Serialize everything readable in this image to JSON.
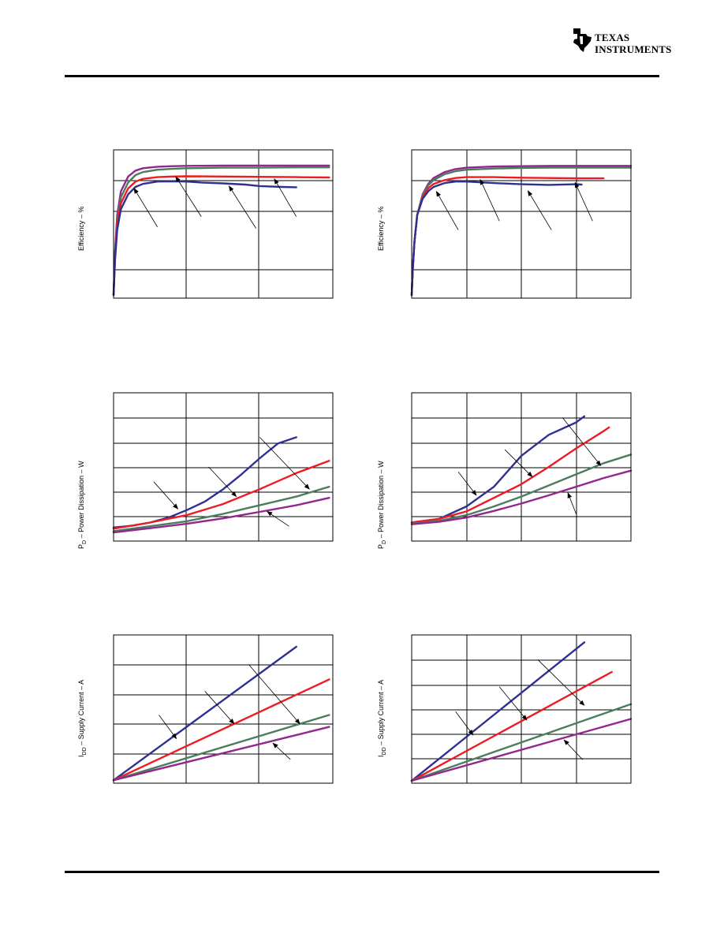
{
  "brand": {
    "logo_text": "TEXAS\nINSTRUMENTS",
    "logo_color": "#000000"
  },
  "colors": {
    "blue": "#2e3192",
    "red": "#ed1c24",
    "green": "#4a7d5e",
    "purple": "#92278f",
    "frame": "#000000",
    "grid": "#000000"
  },
  "chart_data": [
    {
      "type": "line",
      "ylabel": "Efficiency – %",
      "xlim": [
        0,
        3
      ],
      "ylim": [
        0,
        5
      ],
      "grid": true,
      "series": [
        {
          "color": "#92278f",
          "x": [
            0,
            0.02,
            0.05,
            0.1,
            0.2,
            0.3,
            0.4,
            0.6,
            0.8,
            1,
            1.5,
            2,
            2.5,
            2.95
          ],
          "y": [
            0.1,
            1.6,
            2.8,
            3.6,
            4.1,
            4.3,
            4.38,
            4.43,
            4.45,
            4.46,
            4.47,
            4.47,
            4.47,
            4.47
          ]
        },
        {
          "color": "#4a7d5e",
          "x": [
            0,
            0.02,
            0.05,
            0.1,
            0.2,
            0.3,
            0.4,
            0.6,
            0.8,
            1,
            1.5,
            2,
            2.5,
            2.95
          ],
          "y": [
            0.1,
            1.5,
            2.6,
            3.4,
            3.9,
            4.15,
            4.25,
            4.33,
            4.36,
            4.38,
            4.4,
            4.4,
            4.41,
            4.41
          ]
        },
        {
          "color": "#ed1c24",
          "x": [
            0,
            0.02,
            0.05,
            0.1,
            0.2,
            0.3,
            0.4,
            0.6,
            0.8,
            1,
            1.5,
            2,
            2.5,
            2.95
          ],
          "y": [
            0.1,
            1.4,
            2.5,
            3.2,
            3.7,
            3.93,
            4.02,
            4.08,
            4.1,
            4.11,
            4.1,
            4.09,
            4.08,
            4.07
          ]
        },
        {
          "color": "#2e3192",
          "x": [
            0,
            0.02,
            0.05,
            0.1,
            0.2,
            0.3,
            0.4,
            0.6,
            0.8,
            1,
            1.2,
            1.5,
            1.8,
            2,
            2.3,
            2.5
          ],
          "y": [
            0.1,
            1.3,
            2.3,
            3.0,
            3.5,
            3.75,
            3.85,
            3.93,
            3.94,
            3.93,
            3.9,
            3.87,
            3.83,
            3.78,
            3.75,
            3.74
          ]
        }
      ],
      "arrows": [
        {
          "from": [
            0.6,
            2.4
          ],
          "to": [
            0.28,
            3.7
          ]
        },
        {
          "from": [
            1.2,
            2.75
          ],
          "to": [
            0.85,
            4.1
          ]
        },
        {
          "from": [
            1.95,
            2.35
          ],
          "to": [
            1.58,
            3.78
          ]
        },
        {
          "from": [
            2.5,
            2.75
          ],
          "to": [
            2.2,
            4.02
          ]
        }
      ]
    },
    {
      "type": "line",
      "ylabel": "Efficiency – %",
      "xlim": [
        0,
        4
      ],
      "ylim": [
        0,
        5
      ],
      "grid": true,
      "series": [
        {
          "color": "#92278f",
          "x": [
            0,
            0.02,
            0.05,
            0.1,
            0.2,
            0.3,
            0.4,
            0.6,
            0.8,
            1,
            1.5,
            2,
            2.5,
            3,
            3.5,
            4
          ],
          "y": [
            0.1,
            1.0,
            1.9,
            2.8,
            3.5,
            3.85,
            4.05,
            4.25,
            4.35,
            4.4,
            4.44,
            4.45,
            4.46,
            4.46,
            4.46,
            4.46
          ]
        },
        {
          "color": "#4a7d5e",
          "x": [
            0,
            0.02,
            0.05,
            0.1,
            0.2,
            0.3,
            0.4,
            0.6,
            0.8,
            1,
            1.5,
            2,
            2.5,
            3,
            3.5,
            4
          ],
          "y": [
            0.1,
            1.0,
            1.9,
            2.8,
            3.45,
            3.8,
            3.98,
            4.18,
            4.28,
            4.33,
            4.37,
            4.39,
            4.4,
            4.4,
            4.4,
            4.4
          ]
        },
        {
          "color": "#ed1c24",
          "x": [
            0,
            0.02,
            0.05,
            0.1,
            0.2,
            0.3,
            0.4,
            0.6,
            0.8,
            1,
            1.5,
            2,
            2.5,
            3,
            3.5
          ],
          "y": [
            0.1,
            1.0,
            1.9,
            2.8,
            3.4,
            3.7,
            3.85,
            3.98,
            4.05,
            4.08,
            4.08,
            4.06,
            4.05,
            4.04,
            4.04
          ]
        },
        {
          "color": "#2e3192",
          "x": [
            0,
            0.02,
            0.05,
            0.1,
            0.2,
            0.3,
            0.4,
            0.6,
            0.8,
            1,
            1.5,
            2,
            2.5,
            3,
            3.1
          ],
          "y": [
            0.1,
            1.0,
            1.9,
            2.8,
            3.35,
            3.6,
            3.75,
            3.88,
            3.93,
            3.93,
            3.88,
            3.84,
            3.82,
            3.84,
            3.83
          ]
        }
      ],
      "arrows": [
        {
          "from": [
            0.85,
            2.3
          ],
          "to": [
            0.45,
            3.6
          ]
        },
        {
          "from": [
            1.6,
            2.6
          ],
          "to": [
            1.25,
            4.0
          ]
        },
        {
          "from": [
            2.55,
            2.3
          ],
          "to": [
            2.12,
            3.62
          ]
        },
        {
          "from": [
            3.3,
            2.6
          ],
          "to": [
            2.98,
            3.9
          ]
        }
      ]
    },
    {
      "type": "line",
      "ylabel": "P – Power Dissipation – W",
      "ylabel_main": "P",
      "ylabel_sub": "D",
      "ylabel_rest": " – Power Dissipation – W",
      "xlim": [
        0,
        3
      ],
      "ylim": [
        0,
        6
      ],
      "grid": true,
      "series": [
        {
          "color": "#2e3192",
          "x": [
            0,
            0.25,
            0.5,
            0.75,
            1.0,
            1.25,
            1.5,
            1.75,
            2.0,
            2.25,
            2.5
          ],
          "y": [
            0.55,
            0.62,
            0.75,
            0.95,
            1.25,
            1.6,
            2.1,
            2.7,
            3.35,
            3.95,
            4.2
          ]
        },
        {
          "color": "#ed1c24",
          "x": [
            0,
            0.5,
            1.0,
            1.5,
            2.0,
            2.5,
            2.95
          ],
          "y": [
            0.5,
            0.75,
            1.05,
            1.5,
            2.1,
            2.75,
            3.25
          ]
        },
        {
          "color": "#4a7d5e",
          "x": [
            0,
            0.5,
            1.0,
            1.5,
            2.0,
            2.5,
            2.95
          ],
          "y": [
            0.4,
            0.6,
            0.8,
            1.1,
            1.45,
            1.8,
            2.2
          ]
        },
        {
          "color": "#92278f",
          "x": [
            0,
            0.5,
            1.0,
            1.5,
            2.0,
            2.5,
            2.95
          ],
          "y": [
            0.35,
            0.52,
            0.7,
            0.92,
            1.18,
            1.45,
            1.75
          ]
        }
      ],
      "arrows": [
        {
          "from": [
            0.55,
            2.4
          ],
          "to": [
            0.88,
            1.3
          ]
        },
        {
          "from": [
            1.3,
            3.0
          ],
          "to": [
            1.68,
            1.8
          ]
        },
        {
          "from": [
            2.0,
            4.2
          ],
          "to": [
            2.68,
            2.1
          ]
        },
        {
          "from": [
            2.4,
            0.6
          ],
          "to": [
            2.1,
            1.2
          ]
        }
      ]
    },
    {
      "type": "line",
      "ylabel": "P – Power Dissipation – W",
      "ylabel_main": "P",
      "ylabel_sub": "D",
      "ylabel_rest": " – Power Dissipation – W",
      "xlim": [
        0,
        4
      ],
      "ylim": [
        0,
        6
      ],
      "grid": true,
      "series": [
        {
          "color": "#2e3192",
          "x": [
            0,
            0.5,
            1.0,
            1.5,
            2.0,
            2.5,
            3.0,
            3.15
          ],
          "y": [
            0.75,
            0.9,
            1.4,
            2.2,
            3.45,
            4.3,
            4.8,
            5.05
          ]
        },
        {
          "color": "#ed1c24",
          "x": [
            0,
            0.5,
            1.0,
            1.5,
            2.0,
            2.5,
            3.0,
            3.5,
            3.6
          ],
          "y": [
            0.75,
            0.9,
            1.2,
            1.75,
            2.3,
            3.0,
            3.75,
            4.45,
            4.6
          ]
        },
        {
          "color": "#4a7d5e",
          "x": [
            0,
            0.5,
            1.0,
            1.5,
            2.0,
            2.5,
            3.0,
            3.5,
            4.0
          ],
          "y": [
            0.7,
            0.82,
            1.05,
            1.4,
            1.8,
            2.25,
            2.7,
            3.15,
            3.5
          ]
        },
        {
          "color": "#92278f",
          "x": [
            0,
            0.5,
            1.0,
            1.5,
            2.0,
            2.5,
            3.0,
            3.5,
            4.0
          ],
          "y": [
            0.68,
            0.78,
            0.95,
            1.22,
            1.52,
            1.85,
            2.2,
            2.55,
            2.85
          ]
        }
      ],
      "arrows": [
        {
          "from": [
            0.85,
            2.8
          ],
          "to": [
            1.18,
            1.85
          ]
        },
        {
          "from": [
            1.7,
            3.7
          ],
          "to": [
            2.2,
            2.6
          ]
        },
        {
          "from": [
            2.75,
            5.0
          ],
          "to": [
            3.45,
            3.05
          ]
        },
        {
          "from": [
            3.0,
            1.1
          ],
          "to": [
            2.85,
            1.95
          ]
        }
      ]
    },
    {
      "type": "line",
      "ylabel": "I – Supply Current – A",
      "ylabel_main": "I",
      "ylabel_sub": "DD",
      "ylabel_rest": " – Supply Current – A",
      "xlim": [
        0,
        3
      ],
      "ylim": [
        0,
        5
      ],
      "grid": true,
      "series": [
        {
          "color": "#2e3192",
          "x": [
            0,
            2.5
          ],
          "y": [
            0.1,
            4.6
          ]
        },
        {
          "color": "#ed1c24",
          "x": [
            0,
            2.95
          ],
          "y": [
            0.1,
            3.5
          ]
        },
        {
          "color": "#4a7d5e",
          "x": [
            0,
            2.95
          ],
          "y": [
            0.1,
            2.3
          ]
        },
        {
          "color": "#92278f",
          "x": [
            0,
            2.95
          ],
          "y": [
            0.1,
            1.9
          ]
        }
      ],
      "arrows": [
        {
          "from": [
            0.62,
            2.3
          ],
          "to": [
            0.86,
            1.5
          ]
        },
        {
          "from": [
            1.25,
            3.1
          ],
          "to": [
            1.65,
            2.0
          ]
        },
        {
          "from": [
            1.85,
            4.0
          ],
          "to": [
            2.55,
            2.0
          ]
        },
        {
          "from": [
            2.42,
            0.8
          ],
          "to": [
            2.18,
            1.35
          ]
        }
      ]
    },
    {
      "type": "line",
      "ylabel": "I – Supply Current – A",
      "ylabel_main": "I",
      "ylabel_sub": "DD",
      "ylabel_rest": " – Supply Current – A",
      "xlim": [
        0,
        4
      ],
      "ylim": [
        0,
        6
      ],
      "grid": true,
      "series": [
        {
          "color": "#2e3192",
          "x": [
            0,
            3.15
          ],
          "y": [
            0.1,
            5.7
          ]
        },
        {
          "color": "#ed1c24",
          "x": [
            0,
            3.65
          ],
          "y": [
            0.1,
            4.5
          ]
        },
        {
          "color": "#4a7d5e",
          "x": [
            0,
            4.0
          ],
          "y": [
            0.1,
            3.2
          ]
        },
        {
          "color": "#92278f",
          "x": [
            0,
            4.0
          ],
          "y": [
            0.1,
            2.6
          ]
        }
      ],
      "arrows": [
        {
          "from": [
            0.8,
            2.9
          ],
          "to": [
            1.12,
            1.95
          ]
        },
        {
          "from": [
            1.6,
            3.9
          ],
          "to": [
            2.1,
            2.55
          ]
        },
        {
          "from": [
            2.3,
            5.0
          ],
          "to": [
            3.15,
            3.15
          ]
        },
        {
          "from": [
            3.12,
            0.95
          ],
          "to": [
            2.78,
            1.75
          ]
        }
      ]
    }
  ]
}
